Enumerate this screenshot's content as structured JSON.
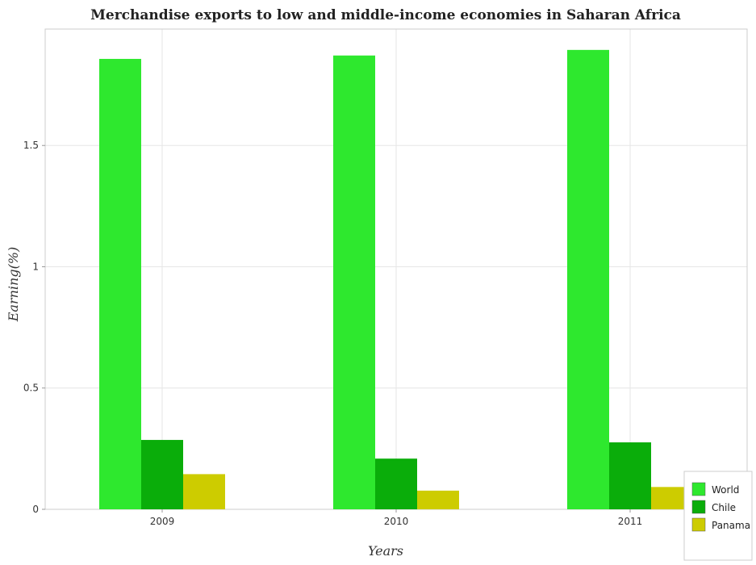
{
  "chart_data": {
    "type": "bar",
    "title": "Merchandise exports to low and middle-income economies in Saharan Africa",
    "xlabel": "Years",
    "ylabel": "Earning(%)",
    "categories": [
      "2009",
      "2010",
      "2011"
    ],
    "series": [
      {
        "name": "World",
        "color": "#2ee82e",
        "values": [
          1.857,
          1.871,
          1.894
        ]
      },
      {
        "name": "Chile",
        "color": "#0aad0a",
        "values": [
          0.286,
          0.209,
          0.276
        ]
      },
      {
        "name": "Panama",
        "color": "#cdcc00",
        "values": [
          0.145,
          0.077,
          0.092
        ]
      }
    ],
    "yticks": [
      0,
      0.5,
      1,
      1.5
    ],
    "ytick_labels": [
      "0",
      "0.5",
      "1",
      "1.5"
    ],
    "ylim": [
      0,
      1.98
    ],
    "grid": true,
    "legend_position": "bottom-right"
  }
}
